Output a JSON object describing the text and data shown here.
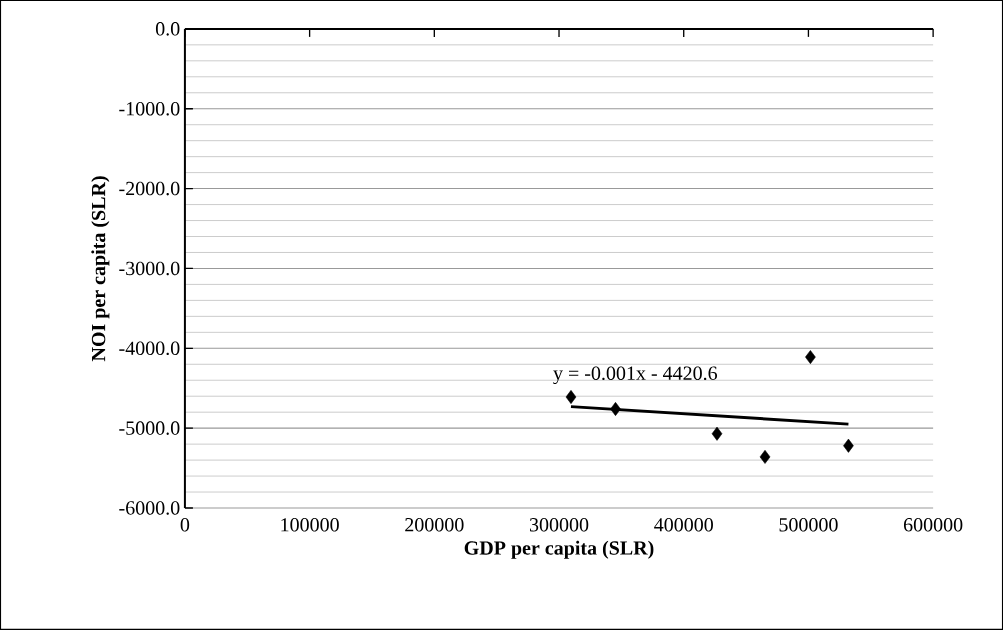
{
  "chart_data": {
    "type": "scatter",
    "xlabel": "GDP per capita (SLR)",
    "ylabel": "NOI per capita (SLR)",
    "xlim": [
      0,
      600000
    ],
    "ylim": [
      -6000,
      0
    ],
    "xticks": [
      0,
      100000,
      200000,
      300000,
      400000,
      500000,
      600000
    ],
    "yticks": [
      {
        "value": -6000,
        "label": "-6000.0"
      },
      {
        "value": -5000,
        "label": "-5000.0"
      },
      {
        "value": -4000,
        "label": "-4000.0"
      },
      {
        "value": -3000,
        "label": "-3000.0"
      },
      {
        "value": -2000,
        "label": "-2000.0"
      },
      {
        "value": -1000,
        "label": "-1000.0"
      },
      {
        "value": 0,
        "label": "0.0"
      }
    ],
    "grid": "y",
    "marker": "diamond",
    "series": [
      {
        "color": "#000000",
        "x": [
          309600,
          345300,
          426700,
          465200,
          501600,
          532100
        ],
        "values": [
          -4610,
          -4760,
          -5070,
          -5360,
          -4110,
          -5220
        ]
      },
      {
        "type": "line",
        "color": "#000000",
        "marker": "none",
        "x": [
          309600,
          532100
        ],
        "values": [
          -4730,
          -4950
        ]
      }
    ],
    "annotations": [
      "y = -0.001x - 4420.6"
    ]
  }
}
